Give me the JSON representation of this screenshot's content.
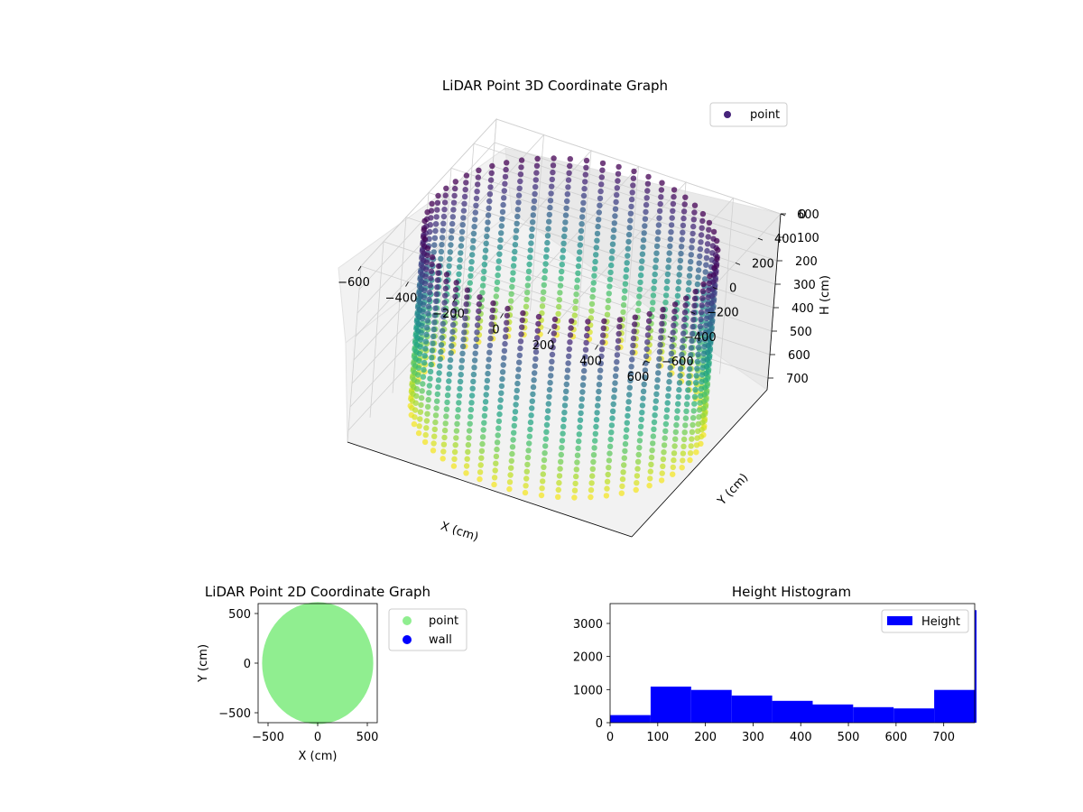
{
  "chart_data": [
    {
      "type": "scatter",
      "title": "LiDAR Point 3D Coordinate Graph",
      "xlabel": "X (cm)",
      "ylabel": "Y (cm)",
      "zlabel": "H (cm)",
      "xlim": [
        -600,
        600
      ],
      "ylim": [
        -600,
        600
      ],
      "zlim": [
        0,
        750
      ],
      "z_inverted": true,
      "xticks": [
        -600,
        -400,
        -200,
        0,
        200,
        400,
        600
      ],
      "yticks": [
        -600,
        -400,
        -200,
        0,
        200,
        400,
        600
      ],
      "zticks": [
        0,
        100,
        200,
        300,
        400,
        500,
        600,
        700
      ],
      "colormap": "viridis",
      "legend": {
        "position": "top-right",
        "entries": [
          {
            "label": "point",
            "color": "#46237a"
          }
        ]
      },
      "shape": "cylindrical wall of points, radius about 560 cm, heights 0 to 760 cm",
      "grid": true
    },
    {
      "type": "scatter",
      "title": "LiDAR Point 2D Coordinate Graph",
      "xlabel": "X (cm)",
      "ylabel": "Y (cm)",
      "xlim": [
        -600,
        600
      ],
      "ylim": [
        -600,
        600
      ],
      "xticks": [
        -500,
        0,
        500
      ],
      "yticks": [
        -500,
        0,
        500
      ],
      "series": [
        {
          "name": "point",
          "color": "#90ee90",
          "shape": "filled disc, radius about 560 cm"
        },
        {
          "name": "wall",
          "color": "#0000ff"
        }
      ],
      "legend": {
        "position": "outside-right"
      },
      "grid": false
    },
    {
      "type": "bar",
      "title": "Height Histogram",
      "xlim": [
        0,
        765
      ],
      "ylim": [
        0,
        3600
      ],
      "xticks": [
        0,
        100,
        200,
        300,
        400,
        500,
        600,
        700
      ],
      "yticks": [
        0,
        1000,
        2000,
        3000
      ],
      "bins": [
        [
          0,
          85,
          230
        ],
        [
          85,
          170,
          1090
        ],
        [
          170,
          255,
          990
        ],
        [
          255,
          340,
          820
        ],
        [
          340,
          425,
          660
        ],
        [
          425,
          510,
          550
        ],
        [
          510,
          595,
          470
        ],
        [
          595,
          680,
          430
        ],
        [
          680,
          765,
          990
        ],
        [
          765,
          770,
          3400
        ]
      ],
      "series": [
        {
          "name": "Height",
          "color": "#0000ff"
        }
      ],
      "legend": {
        "position": "top-right"
      },
      "grid": false
    }
  ]
}
